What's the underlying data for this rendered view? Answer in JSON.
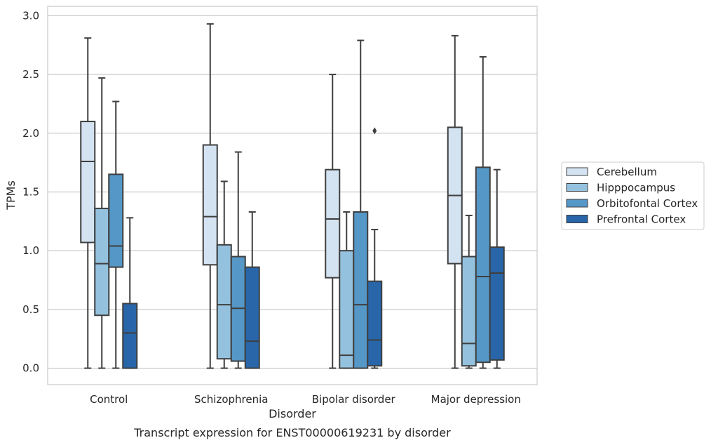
{
  "chart_data": {
    "type": "box",
    "caption": "Transcript expression for ENST00000619231 by disorder",
    "xlabel": "Disorder",
    "ylabel": "TPMs",
    "ylim": [
      -0.14,
      3.08
    ],
    "yticks": [
      "0.0",
      "0.5",
      "1.0",
      "1.5",
      "2.0",
      "2.5",
      "3.0"
    ],
    "grid": "horizontal",
    "legend_position": "right",
    "categories": [
      "Control",
      "Schizophrenia",
      "Bipolar disorder",
      "Major depression"
    ],
    "series": [
      {
        "name": "Cerebellum",
        "color": "#d4e3f1",
        "boxes": [
          {
            "min": 0.0,
            "q1": 1.07,
            "median": 1.76,
            "q3": 2.1,
            "max": 2.81,
            "outliers": []
          },
          {
            "min": 0.0,
            "q1": 0.88,
            "median": 1.29,
            "q3": 1.9,
            "max": 2.93,
            "outliers": []
          },
          {
            "min": 0.0,
            "q1": 0.77,
            "median": 1.27,
            "q3": 1.69,
            "max": 2.5,
            "outliers": []
          },
          {
            "min": 0.0,
            "q1": 0.89,
            "median": 1.47,
            "q3": 2.05,
            "max": 2.83,
            "outliers": []
          }
        ]
      },
      {
        "name": "Hipppocampus",
        "color": "#94c2de",
        "boxes": [
          {
            "min": 0.0,
            "q1": 0.45,
            "median": 0.89,
            "q3": 1.36,
            "max": 2.47,
            "outliers": []
          },
          {
            "min": 0.0,
            "q1": 0.08,
            "median": 0.54,
            "q3": 1.05,
            "max": 1.59,
            "outliers": []
          },
          {
            "min": 0.0,
            "q1": 0.0,
            "median": 0.11,
            "q3": 1.0,
            "max": 1.33,
            "outliers": []
          },
          {
            "min": 0.0,
            "q1": 0.02,
            "median": 0.21,
            "q3": 0.95,
            "max": 1.3,
            "outliers": []
          }
        ]
      },
      {
        "name": "Orbitofontal Cortex",
        "color": "#5597c6",
        "boxes": [
          {
            "min": 0.0,
            "q1": 0.86,
            "median": 1.04,
            "q3": 1.65,
            "max": 2.27,
            "outliers": []
          },
          {
            "min": 0.0,
            "q1": 0.06,
            "median": 0.51,
            "q3": 0.95,
            "max": 1.84,
            "outliers": []
          },
          {
            "min": 0.0,
            "q1": 0.0,
            "median": 0.54,
            "q3": 1.33,
            "max": 2.79,
            "outliers": []
          },
          {
            "min": 0.0,
            "q1": 0.05,
            "median": 0.78,
            "q3": 1.71,
            "max": 2.65,
            "outliers": []
          }
        ]
      },
      {
        "name": "Prefrontal Cortex",
        "color": "#2866a9",
        "boxes": [
          {
            "min": 0.0,
            "q1": 0.0,
            "median": 0.3,
            "q3": 0.55,
            "max": 1.28,
            "outliers": []
          },
          {
            "min": 0.0,
            "q1": 0.0,
            "median": 0.23,
            "q3": 0.86,
            "max": 1.33,
            "outliers": []
          },
          {
            "min": 0.0,
            "q1": 0.02,
            "median": 0.24,
            "q3": 0.74,
            "max": 1.18,
            "outliers": [
              2.02
            ]
          },
          {
            "min": 0.0,
            "q1": 0.07,
            "median": 0.81,
            "q3": 1.03,
            "max": 1.69,
            "outliers": []
          }
        ]
      }
    ]
  }
}
